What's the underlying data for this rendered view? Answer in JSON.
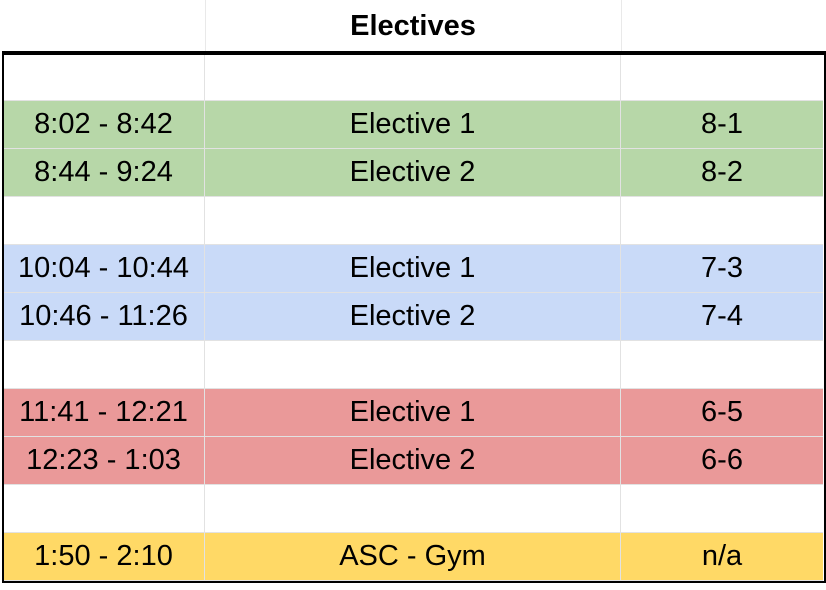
{
  "title": "Electives",
  "colors": {
    "green": "#b7d7a8",
    "blue": "#c9daf8",
    "red": "#ea9999",
    "yellow": "#ffd966"
  },
  "rows": [
    {
      "time": "",
      "elective": "",
      "grade": "",
      "color": "none"
    },
    {
      "time": "8:02 - 8:42",
      "elective": "Elective 1",
      "grade": "8-1",
      "color": "green"
    },
    {
      "time": "8:44 - 9:24",
      "elective": "Elective 2",
      "grade": "8-2",
      "color": "green"
    },
    {
      "time": "",
      "elective": "",
      "grade": "",
      "color": "none"
    },
    {
      "time": "10:04 - 10:44",
      "elective": "Elective 1",
      "grade": "7-3",
      "color": "blue"
    },
    {
      "time": "10:46 - 11:26",
      "elective": "Elective 2",
      "grade": "7-4",
      "color": "blue"
    },
    {
      "time": "",
      "elective": "",
      "grade": "",
      "color": "none"
    },
    {
      "time": "11:41 - 12:21",
      "elective": "Elective 1",
      "grade": "6-5",
      "color": "red"
    },
    {
      "time": "12:23 - 1:03",
      "elective": "Elective 2",
      "grade": "6-6",
      "color": "red"
    },
    {
      "time": "",
      "elective": "",
      "grade": "",
      "color": "none"
    },
    {
      "time": "1:50 - 2:10",
      "elective": "ASC - Gym",
      "grade": "n/a",
      "color": "yellow"
    }
  ]
}
